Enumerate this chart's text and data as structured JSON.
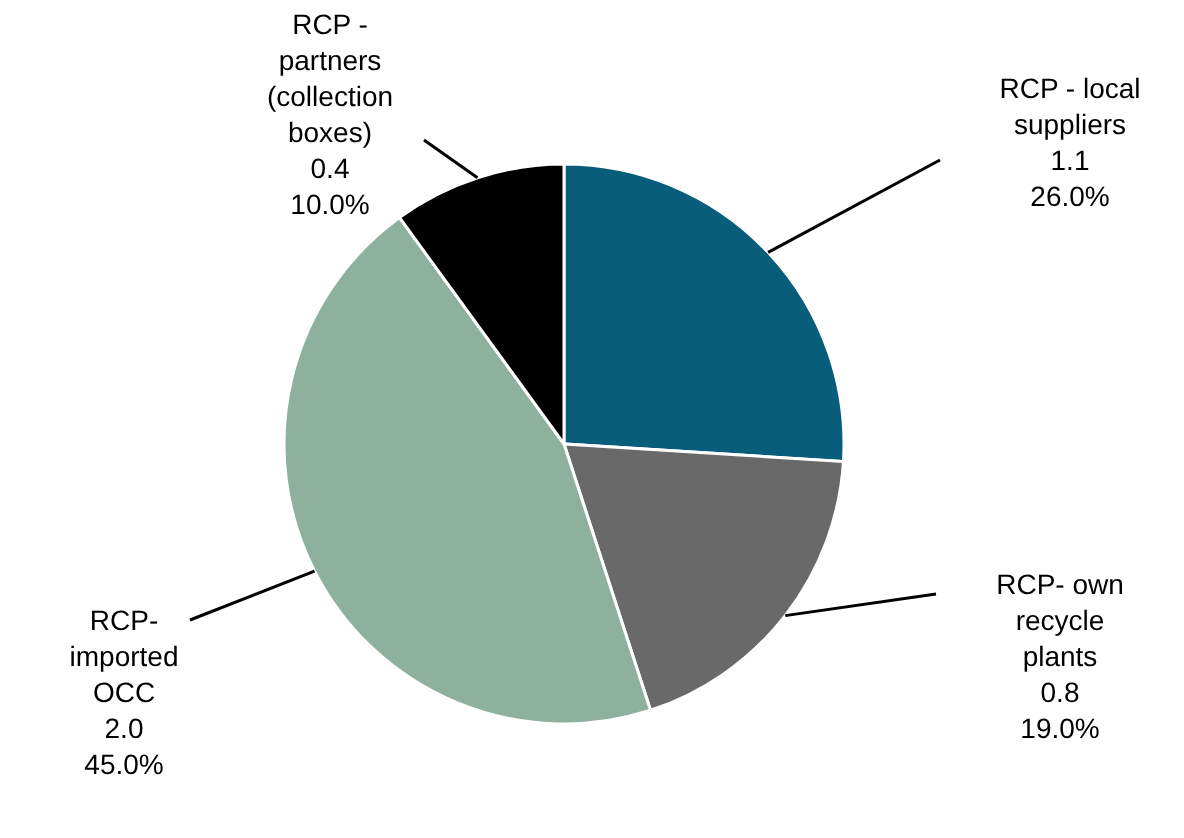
{
  "chart_data": {
    "type": "pie",
    "categories": [
      "RCP - local\nsuppliers",
      "RCP- own\nrecycle\nplants",
      "RCP-\nimported\nOCC",
      "RCP -\npartners\n(collection\nboxes)"
    ],
    "values": [
      26.0,
      19.0,
      45.0,
      10.0
    ],
    "value_labels": [
      "1.1\n26.0%",
      "0.8\n19.0%",
      "2.0\n45.0%",
      "0.4\n10.0%"
    ],
    "colors": [
      "#075d7a",
      "#696969",
      "#8db09f",
      "#000000"
    ]
  }
}
